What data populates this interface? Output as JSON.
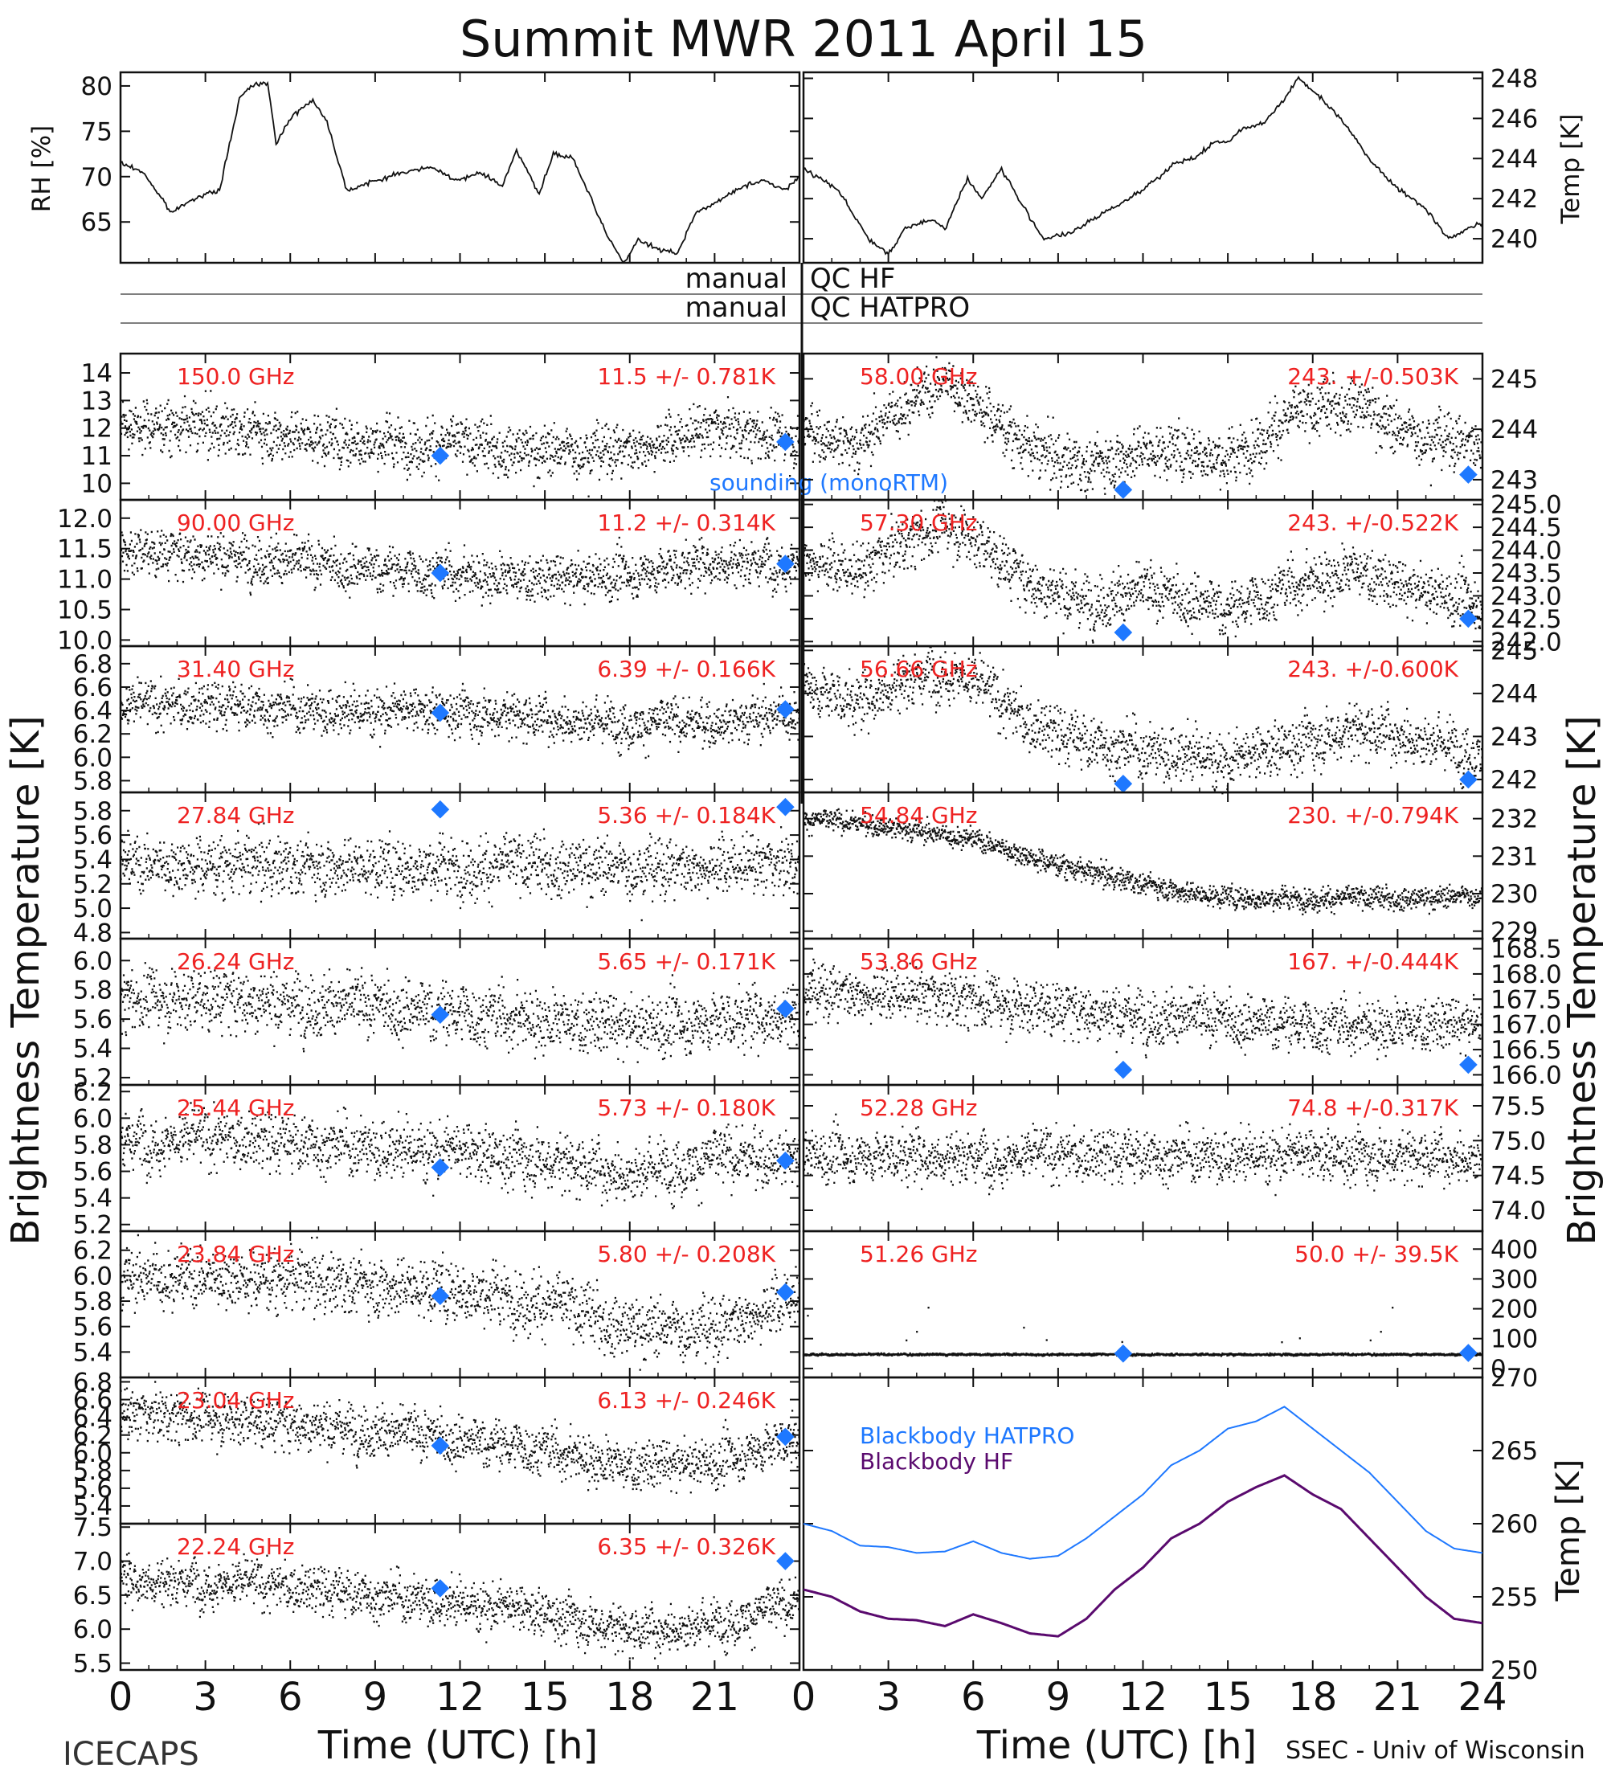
{
  "title": "Summit MWR 2011 April 15",
  "footer_left": "ICECAPS",
  "footer_right": "SSEC - Univ of Wisconsin",
  "manual_label": "manual",
  "qc_hf_label": "QC HF",
  "qc_hatpro_label": "QC HATPRO",
  "colors": {
    "annotation": "#ee2222",
    "sounding": "#1e78ff",
    "blackbody_hf": "#5a0a6e",
    "blackbody_hatpro": "#1e78ff",
    "trace": "#111111"
  },
  "chart_data": [
    {
      "id": "rh",
      "type": "line",
      "ylabel": "RH [%]",
      "ylim": [
        60.5,
        81.5
      ],
      "yticks": [
        65,
        70,
        75,
        80
      ],
      "ytick_labels": [
        "65",
        "70",
        "75",
        "80"
      ],
      "x": [
        0,
        0.8,
        1.8,
        2.5,
        3.5,
        4.2,
        4.6,
        5.2,
        5.5,
        6.0,
        6.8,
        7.3,
        8.0,
        9.0,
        10.0,
        11.0,
        12.0,
        12.7,
        13.5,
        14.0,
        14.8,
        15.3,
        16.0,
        16.7,
        17.2,
        17.8,
        18.3,
        19.0,
        19.7,
        20.3,
        21.0,
        22.0,
        22.8,
        23.5,
        24.0
      ],
      "values": [
        71.5,
        70.5,
        66.0,
        67.5,
        68.5,
        78.5,
        80.0,
        80.5,
        73.5,
        76.5,
        78.5,
        76.0,
        68.5,
        69.5,
        70.5,
        71.0,
        69.5,
        70.5,
        69.0,
        73.0,
        68.0,
        72.5,
        72.0,
        67.0,
        63.5,
        60.5,
        63.0,
        62.0,
        61.5,
        66.0,
        67.0,
        69.0,
        69.5,
        68.5,
        70.0
      ]
    },
    {
      "id": "temp",
      "type": "line",
      "ylabel": "Temp [K]",
      "ylim": [
        238.8,
        248.3
      ],
      "yticks": [
        240,
        242,
        244,
        246,
        248
      ],
      "ytick_labels": [
        "240",
        "242",
        "244",
        "246",
        "248"
      ],
      "x": [
        0,
        1.2,
        2.3,
        3.0,
        3.6,
        4.5,
        5.0,
        5.8,
        6.3,
        7.0,
        7.8,
        8.5,
        9.5,
        10.5,
        11.5,
        12.5,
        13.2,
        13.8,
        14.5,
        15.0,
        15.5,
        16.3,
        17.0,
        17.5,
        18.3,
        19.0,
        20.0,
        21.0,
        22.0,
        22.8,
        23.5,
        24.0
      ],
      "values": [
        243.5,
        242.5,
        240.0,
        239.2,
        240.5,
        241.0,
        240.5,
        243.0,
        242.0,
        243.5,
        241.5,
        240.0,
        240.3,
        241.2,
        242.0,
        243.0,
        243.8,
        244.0,
        244.8,
        244.8,
        245.5,
        245.8,
        247.0,
        248.0,
        247.0,
        246.0,
        244.0,
        242.5,
        241.5,
        240.0,
        240.5,
        240.8
      ]
    },
    {
      "id": "f150",
      "type": "scatter",
      "label": "150.0 GHz",
      "stat": "11.5 +/- 0.781K",
      "ylim": [
        9.4,
        14.7
      ],
      "yticks": [
        10,
        11,
        12,
        13,
        14
      ],
      "ytick_labels": [
        "10",
        "11",
        "12",
        "13",
        "14"
      ],
      "knots_x": [
        0,
        4,
        8,
        12,
        15,
        18,
        21,
        24
      ],
      "knots_y": [
        12.2,
        12.0,
        11.6,
        11.4,
        11.2,
        11.3,
        12.0,
        11.6
      ],
      "noise": 0.78,
      "sounding_x": [
        11.3,
        23.5
      ],
      "sounding_y": [
        11.0,
        11.5
      ],
      "sounding_label": "sounding (monoRTM)"
    },
    {
      "id": "f90",
      "type": "scatter",
      "label": "90.00 GHz",
      "stat": "11.2 +/- 0.314K",
      "ylim": [
        9.9,
        12.3
      ],
      "yticks": [
        10.0,
        10.5,
        11.0,
        11.5,
        12.0
      ],
      "ytick_labels": [
        "10.0",
        "10.5",
        "11.0",
        "11.5",
        "12.0"
      ],
      "knots_x": [
        0,
        4,
        8,
        12,
        15,
        18,
        21,
        24
      ],
      "knots_y": [
        11.5,
        11.4,
        11.2,
        11.1,
        11.0,
        11.1,
        11.3,
        11.3
      ],
      "noise": 0.33,
      "sounding_x": [
        11.3,
        23.5
      ],
      "sounding_y": [
        11.1,
        11.25
      ]
    },
    {
      "id": "f3140",
      "type": "scatter",
      "label": "31.40 GHz",
      "stat": "6.39 +/- 0.166K",
      "ylim": [
        5.7,
        6.95
      ],
      "yticks": [
        5.8,
        6.0,
        6.2,
        6.4,
        6.6,
        6.8
      ],
      "ytick_labels": [
        "5.8",
        "6.0",
        "6.2",
        "6.4",
        "6.6",
        "6.8"
      ],
      "knots_x": [
        0,
        4,
        8,
        12,
        15,
        18,
        21,
        24
      ],
      "knots_y": [
        6.45,
        6.45,
        6.4,
        6.4,
        6.35,
        6.3,
        6.3,
        6.4
      ],
      "noise": 0.17,
      "sounding_x": [
        11.3,
        23.5
      ],
      "sounding_y": [
        6.38,
        6.41
      ]
    },
    {
      "id": "f2784",
      "type": "scatter",
      "label": "27.84 GHz",
      "stat": "5.36 +/- 0.184K",
      "ylim": [
        4.75,
        5.95
      ],
      "yticks": [
        4.8,
        5.0,
        5.2,
        5.4,
        5.6,
        5.8
      ],
      "ytick_labels": [
        "4.8",
        "5.0",
        "5.2",
        "5.4",
        "5.6",
        "5.8"
      ],
      "knots_x": [
        0,
        4,
        8,
        12,
        15,
        18,
        21,
        24
      ],
      "knots_y": [
        5.38,
        5.36,
        5.36,
        5.35,
        5.36,
        5.34,
        5.36,
        5.36
      ],
      "noise": 0.2,
      "sounding_x": [
        11.3,
        23.5
      ],
      "sounding_y": [
        5.81,
        5.83
      ]
    },
    {
      "id": "f2624",
      "type": "scatter",
      "label": "26.24 GHz",
      "stat": "5.65 +/- 0.171K",
      "ylim": [
        5.15,
        6.15
      ],
      "yticks": [
        5.2,
        5.4,
        5.6,
        5.8,
        6.0
      ],
      "ytick_labels": [
        "5.2",
        "5.4",
        "5.6",
        "5.8",
        "6.0"
      ],
      "knots_x": [
        0,
        4,
        8,
        12,
        15,
        18,
        21,
        24
      ],
      "knots_y": [
        5.75,
        5.75,
        5.7,
        5.65,
        5.6,
        5.55,
        5.6,
        5.65
      ],
      "noise": 0.18,
      "sounding_x": [
        11.3,
        23.5
      ],
      "sounding_y": [
        5.63,
        5.67
      ]
    },
    {
      "id": "f2544",
      "type": "scatter",
      "label": "25.44 GHz",
      "stat": "5.73 +/- 0.180K",
      "ylim": [
        5.15,
        6.25
      ],
      "yticks": [
        5.2,
        5.4,
        5.6,
        5.8,
        6.0,
        6.2
      ],
      "ytick_labels": [
        "5.2",
        "5.4",
        "5.6",
        "5.8",
        "6.0",
        "6.2"
      ],
      "knots_x": [
        0,
        4,
        8,
        12,
        15,
        18,
        21,
        24
      ],
      "knots_y": [
        5.85,
        5.85,
        5.8,
        5.75,
        5.7,
        5.6,
        5.7,
        5.72
      ],
      "noise": 0.19,
      "sounding_x": [
        11.3,
        23.5
      ],
      "sounding_y": [
        5.63,
        5.68
      ]
    },
    {
      "id": "f2384",
      "type": "scatter",
      "label": "23.84 GHz",
      "stat": "5.80 +/- 0.208K",
      "ylim": [
        5.2,
        6.35
      ],
      "yticks": [
        5.4,
        5.6,
        5.8,
        6.0,
        6.2
      ],
      "ytick_labels": [
        "5.4",
        "5.6",
        "5.8",
        "6.0",
        "6.2"
      ],
      "knots_x": [
        0,
        4,
        8,
        12,
        15,
        18,
        21,
        24
      ],
      "knots_y": [
        6.0,
        6.0,
        5.95,
        5.9,
        5.8,
        5.6,
        5.6,
        5.85
      ],
      "noise": 0.2,
      "sounding_x": [
        11.3,
        23.5
      ],
      "sounding_y": [
        5.84,
        5.87
      ]
    },
    {
      "id": "f2304",
      "type": "scatter",
      "label": "23.04 GHz",
      "stat": "6.13 +/- 0.246K",
      "ylim": [
        5.2,
        6.85
      ],
      "yticks": [
        5.4,
        5.6,
        5.8,
        6.0,
        6.2,
        6.4,
        6.6,
        6.8
      ],
      "ytick_labels": [
        "5.4",
        "5.6",
        "5.8",
        "6.0",
        "6.2",
        "6.4",
        "6.6",
        "6.8"
      ],
      "knots_x": [
        0,
        4,
        8,
        12,
        15,
        18,
        21,
        24
      ],
      "knots_y": [
        6.45,
        6.4,
        6.3,
        6.15,
        6.05,
        5.85,
        5.9,
        6.2
      ],
      "noise": 0.24,
      "sounding_x": [
        11.3,
        23.5
      ],
      "sounding_y": [
        6.08,
        6.18
      ]
    },
    {
      "id": "f2224",
      "type": "scatter",
      "label": "22.24 GHz",
      "stat": "6.35 +/- 0.326K",
      "ylim": [
        5.4,
        7.55
      ],
      "yticks": [
        5.5,
        6.0,
        6.5,
        7.0,
        7.5
      ],
      "ytick_labels": [
        "5.5",
        "6.0",
        "6.5",
        "7.0",
        "7.5"
      ],
      "knots_x": [
        0,
        4,
        8,
        12,
        15,
        18,
        21,
        24
      ],
      "knots_y": [
        6.75,
        6.7,
        6.55,
        6.4,
        6.25,
        6.0,
        6.1,
        6.4
      ],
      "noise": 0.3,
      "sounding_x": [
        11.3,
        23.5
      ],
      "sounding_y": [
        6.6,
        7.0
      ]
    },
    {
      "id": "f5800",
      "type": "scatter",
      "label": "58.00 GHz",
      "stat": "243. +/-0.503K",
      "ylim": [
        242.6,
        245.5
      ],
      "yticks": [
        243,
        244,
        245
      ],
      "ytick_labels": [
        "243",
        "244",
        "245"
      ],
      "knots_x": [
        0,
        2,
        3,
        5,
        6,
        8,
        10,
        12,
        14,
        15,
        17,
        19.5,
        21,
        23,
        24
      ],
      "knots_y": [
        244.0,
        243.7,
        244.3,
        245.0,
        244.6,
        243.6,
        243.3,
        243.6,
        243.6,
        243.4,
        244.2,
        244.6,
        244.0,
        243.8,
        243.7
      ],
      "noise": 0.45,
      "sounding_x": [
        11.3,
        23.5
      ],
      "sounding_y": [
        242.8,
        243.1
      ]
    },
    {
      "id": "f5730",
      "type": "scatter",
      "label": "57.30 GHz",
      "stat": "243. +/-0.522K",
      "ylim": [
        241.9,
        245.1
      ],
      "yticks": [
        242.0,
        242.5,
        243.0,
        243.5,
        244.0,
        244.5,
        245.0
      ],
      "ytick_labels": [
        "242.0",
        "242.5",
        "243.0",
        "243.5",
        "244.0",
        "244.5",
        "245.0"
      ],
      "knots_x": [
        0,
        2,
        3,
        5,
        6,
        8,
        10,
        12,
        14,
        15,
        17,
        19.5,
        21,
        23,
        24
      ],
      "knots_y": [
        243.9,
        243.5,
        244.0,
        244.6,
        244.3,
        243.3,
        242.9,
        243.1,
        242.9,
        242.7,
        243.2,
        243.6,
        243.2,
        243.0,
        242.9
      ],
      "noise": 0.5,
      "sounding_x": [
        11.3,
        23.5
      ],
      "sounding_y": [
        242.2,
        242.5
      ]
    },
    {
      "id": "f5666",
      "type": "scatter",
      "label": "56.66 GHz",
      "stat": "243. +/-0.600K",
      "ylim": [
        241.7,
        245.1
      ],
      "yticks": [
        242,
        243,
        244,
        245
      ],
      "ytick_labels": [
        "242",
        "243",
        "244",
        "245"
      ],
      "knots_x": [
        0,
        2,
        3,
        5,
        6,
        8,
        10,
        12,
        14,
        15,
        17,
        19.5,
        21,
        23,
        24
      ],
      "knots_y": [
        244.2,
        243.8,
        244.2,
        244.6,
        244.3,
        243.3,
        242.9,
        242.7,
        242.6,
        242.4,
        242.8,
        243.2,
        243.1,
        242.8,
        242.6
      ],
      "noise": 0.55,
      "sounding_x": [
        11.3,
        23.5
      ],
      "sounding_y": [
        241.9,
        242.0
      ]
    },
    {
      "id": "f5484",
      "type": "scatter",
      "label": "54.84 GHz",
      "stat": "230. +/-0.794K",
      "ylim": [
        228.8,
        232.7
      ],
      "yticks": [
        229,
        230,
        231,
        232
      ],
      "ytick_labels": [
        "229",
        "230",
        "231",
        "232"
      ],
      "knots_x": [
        0,
        2,
        4,
        6,
        8,
        10,
        12,
        14,
        16,
        18,
        20,
        22,
        24
      ],
      "knots_y": [
        232.0,
        231.9,
        231.7,
        231.5,
        231.0,
        230.6,
        230.3,
        230.0,
        229.9,
        229.9,
        229.9,
        229.9,
        230.0
      ],
      "noise": 0.25,
      "sounding_x": [],
      "sounding_y": []
    },
    {
      "id": "f5386",
      "type": "scatter",
      "label": "53.86 GHz",
      "stat": "167. +/-0.444K",
      "ylim": [
        165.8,
        168.7
      ],
      "yticks": [
        166.0,
        166.5,
        167.0,
        167.5,
        168.0,
        168.5
      ],
      "ytick_labels": [
        "166.0",
        "166.5",
        "167.0",
        "167.5",
        "168.0",
        "168.5"
      ],
      "knots_x": [
        0,
        4,
        8,
        12,
        15,
        18,
        21,
        24
      ],
      "knots_y": [
        167.7,
        167.6,
        167.4,
        167.2,
        167.1,
        167.0,
        167.0,
        167.0
      ],
      "noise": 0.45,
      "sounding_x": [
        11.3,
        23.5
      ],
      "sounding_y": [
        166.1,
        166.2
      ]
    },
    {
      "id": "f5228",
      "type": "scatter",
      "label": "52.28 GHz",
      "stat": "74.8 +/-0.317K",
      "ylim": [
        73.7,
        75.8
      ],
      "yticks": [
        74.0,
        74.5,
        75.0,
        75.5
      ],
      "ytick_labels": [
        "74.0",
        "74.5",
        "75.0",
        "75.5"
      ],
      "knots_x": [
        0,
        4,
        8,
        12,
        15,
        18,
        21,
        24
      ],
      "knots_y": [
        74.8,
        74.8,
        74.8,
        74.8,
        74.8,
        74.8,
        74.8,
        74.8
      ],
      "noise": 0.32,
      "sounding_x": [],
      "sounding_y": []
    },
    {
      "id": "f5126",
      "type": "scatter",
      "label": "51.26 GHz",
      "stat": "50.0 +/- 39.5K",
      "ylim": [
        -30,
        460
      ],
      "yticks": [
        0,
        100,
        200,
        300,
        400
      ],
      "ytick_labels": [
        "0",
        "100",
        "200",
        "300",
        "400"
      ],
      "knots_x": [
        0,
        24
      ],
      "knots_y": [
        50,
        50
      ],
      "noise": 3,
      "spikes": true,
      "sounding_x": [
        11.3,
        23.5
      ],
      "sounding_y": [
        50,
        52
      ]
    },
    {
      "id": "blackbody",
      "type": "line",
      "ylabel": "Temp [K]",
      "ylim": [
        250,
        270
      ],
      "yticks": [
        250,
        255,
        260,
        265,
        270
      ],
      "ytick_labels": [
        "250",
        "255",
        "260",
        "265",
        "270"
      ],
      "series": [
        {
          "name": "Blackbody HATPRO",
          "x": [
            0,
            1,
            2,
            3,
            4,
            5,
            6,
            7,
            8,
            9,
            10,
            11,
            12,
            13,
            14,
            15,
            16,
            17,
            18,
            19,
            20,
            21,
            22,
            23,
            24
          ],
          "values": [
            260.0,
            259.5,
            258.5,
            258.4,
            258.0,
            258.1,
            258.8,
            258.0,
            257.6,
            257.8,
            259.0,
            260.5,
            262.0,
            264.0,
            265.0,
            266.5,
            267.0,
            268.0,
            266.5,
            265.0,
            263.5,
            261.5,
            259.5,
            258.3,
            258.0
          ]
        },
        {
          "name": "Blackbody HF",
          "x": [
            0,
            1,
            2,
            3,
            4,
            5,
            6,
            7,
            8,
            9,
            10,
            11,
            12,
            13,
            14,
            15,
            16,
            17,
            18,
            19,
            20,
            21,
            22,
            23,
            24
          ],
          "values": [
            255.5,
            255.0,
            254.0,
            253.5,
            253.4,
            253.0,
            253.8,
            253.2,
            252.5,
            252.3,
            253.5,
            255.5,
            257.0,
            259.0,
            260.0,
            261.5,
            262.5,
            263.3,
            262.0,
            261.0,
            259.0,
            257.0,
            255.0,
            253.5,
            253.2
          ]
        }
      ]
    }
  ],
  "x_axis": {
    "label": "Time (UTC) [h]",
    "ticks": [
      0,
      3,
      6,
      9,
      12,
      15,
      18,
      21,
      24
    ],
    "tick_labels_left": [
      "0",
      "3",
      "6",
      "9",
      "12",
      "15",
      "18",
      "21"
    ],
    "tick_labels_right": [
      "0",
      "3",
      "6",
      "9",
      "12",
      "15",
      "18",
      "21",
      "24"
    ],
    "xlim": [
      0,
      24
    ]
  },
  "left_ylabel": "Brightness Temperature [K]",
  "right_ylabel": "Brightness Temperature [K]"
}
